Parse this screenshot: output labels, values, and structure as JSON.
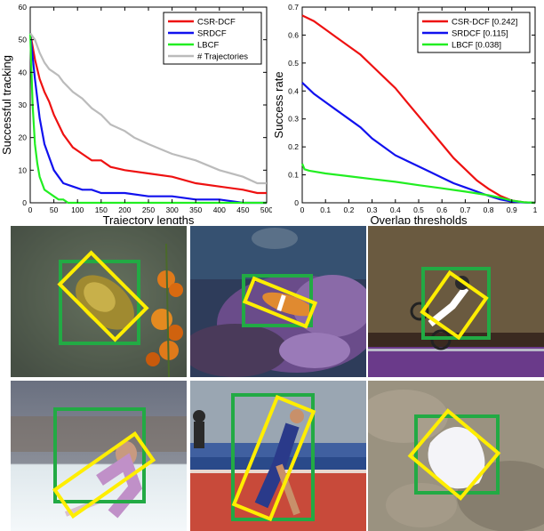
{
  "chart_data": [
    {
      "type": "line",
      "xlabel": "Trajectory lengths",
      "ylabel": "Successful tracking",
      "xlim": [
        0,
        500
      ],
      "ylim": [
        0,
        60
      ],
      "xticks": [
        0,
        50,
        100,
        150,
        200,
        250,
        300,
        350,
        400,
        450,
        500
      ],
      "yticks": [
        0,
        10,
        20,
        30,
        40,
        50,
        60
      ],
      "legend": "top-right",
      "grid": false,
      "series": [
        {
          "name": "CSR-DCF",
          "color": "#ee1111",
          "x": [
            0,
            10,
            20,
            30,
            40,
            50,
            60,
            70,
            90,
            110,
            130,
            150,
            170,
            200,
            250,
            300,
            350,
            400,
            450,
            480,
            500
          ],
          "y": [
            52,
            44,
            38,
            34,
            31,
            27,
            24,
            21,
            17,
            15,
            13,
            13,
            11,
            10,
            9,
            8,
            6,
            5,
            4,
            3,
            3
          ]
        },
        {
          "name": "SRDCF",
          "color": "#1111ee",
          "x": [
            0,
            10,
            20,
            30,
            40,
            50,
            60,
            70,
            90,
            110,
            130,
            150,
            200,
            250,
            300,
            350,
            400,
            450,
            500
          ],
          "y": [
            52,
            38,
            26,
            18,
            14,
            10,
            8,
            6,
            5,
            4,
            4,
            3,
            3,
            2,
            2,
            1,
            1,
            0,
            0
          ]
        },
        {
          "name": "LBCF",
          "color": "#22ee22",
          "x": [
            0,
            5,
            10,
            15,
            20,
            25,
            30,
            40,
            50,
            60,
            70,
            80,
            500
          ],
          "y": [
            52,
            30,
            18,
            12,
            8,
            6,
            4,
            3,
            2,
            1,
            1,
            0,
            0
          ]
        },
        {
          "name": "# Trajectories",
          "color": "#bbbbbb",
          "x": [
            0,
            10,
            20,
            30,
            40,
            50,
            60,
            70,
            90,
            110,
            130,
            150,
            170,
            200,
            220,
            250,
            300,
            350,
            400,
            450,
            480,
            500
          ],
          "y": [
            52,
            50,
            46,
            43,
            41,
            40,
            39,
            37,
            34,
            32,
            29,
            27,
            24,
            22,
            20,
            18,
            15,
            13,
            10,
            8,
            6,
            6
          ]
        }
      ]
    },
    {
      "type": "line",
      "xlabel": "Overlap thresholds",
      "ylabel": "Success rate",
      "xlim": [
        0,
        1
      ],
      "ylim": [
        0,
        0.7
      ],
      "xticks": [
        0,
        0.1,
        0.2,
        0.3,
        0.4,
        0.5,
        0.6,
        0.7,
        0.8,
        0.9,
        1
      ],
      "yticks": [
        0,
        0.1,
        0.2,
        0.3,
        0.4,
        0.5,
        0.6,
        0.7
      ],
      "legend": "top-right",
      "grid": false,
      "series": [
        {
          "name": "CSR-DCF [0.242]",
          "color": "#ee1111",
          "x": [
            0,
            0.05,
            0.1,
            0.15,
            0.2,
            0.25,
            0.3,
            0.35,
            0.4,
            0.45,
            0.5,
            0.55,
            0.6,
            0.65,
            0.7,
            0.75,
            0.8,
            0.85,
            0.9,
            0.95,
            1
          ],
          "y": [
            0.67,
            0.65,
            0.62,
            0.59,
            0.56,
            0.53,
            0.49,
            0.45,
            0.41,
            0.36,
            0.31,
            0.26,
            0.21,
            0.16,
            0.12,
            0.08,
            0.05,
            0.025,
            0.008,
            0.002,
            0
          ]
        },
        {
          "name": "SRDCF [0.115]",
          "color": "#1111ee",
          "x": [
            0,
            0.05,
            0.1,
            0.15,
            0.2,
            0.25,
            0.3,
            0.35,
            0.4,
            0.45,
            0.5,
            0.55,
            0.6,
            0.65,
            0.7,
            0.75,
            0.8,
            0.85,
            0.9,
            0.95,
            1
          ],
          "y": [
            0.43,
            0.39,
            0.36,
            0.33,
            0.3,
            0.27,
            0.23,
            0.2,
            0.17,
            0.15,
            0.13,
            0.11,
            0.09,
            0.07,
            0.055,
            0.04,
            0.025,
            0.012,
            0.004,
            0.001,
            0
          ]
        },
        {
          "name": "LBCF [0.038]",
          "color": "#22ee22",
          "x": [
            0,
            0.01,
            0.03,
            0.1,
            0.2,
            0.3,
            0.4,
            0.5,
            0.6,
            0.7,
            0.8,
            0.85,
            0.9,
            0.95,
            1
          ],
          "y": [
            0.14,
            0.12,
            0.115,
            0.105,
            0.095,
            0.085,
            0.075,
            0.063,
            0.052,
            0.04,
            0.027,
            0.018,
            0.008,
            0.002,
            0
          ]
        }
      ]
    }
  ],
  "tiles": {
    "groundtruth_color": "#22aa44",
    "prediction_color": "#ffee00"
  }
}
